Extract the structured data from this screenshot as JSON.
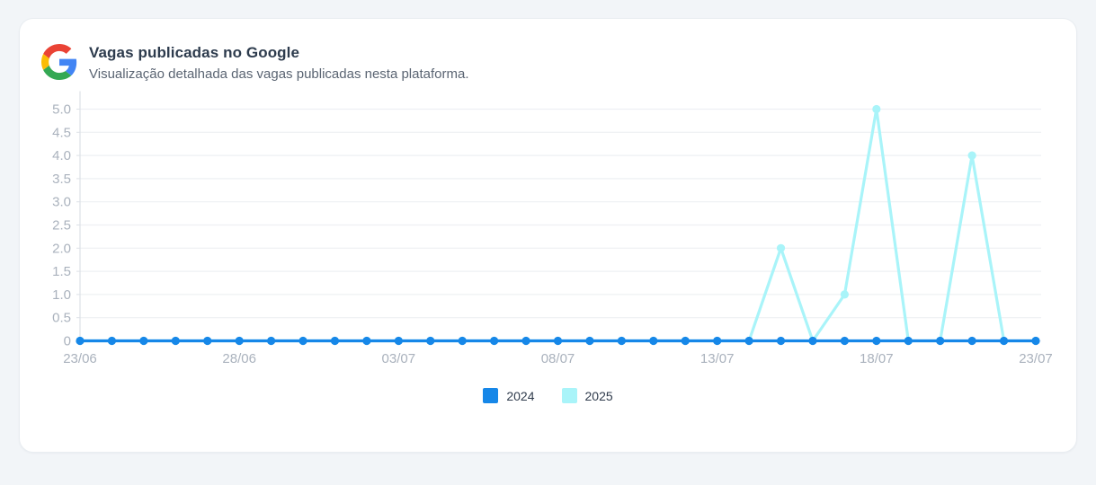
{
  "header": {
    "title": "Vagas publicadas no Google",
    "subtitle": "Visualização detalhada das vagas publicadas nesta plataforma.",
    "logo_icon": "google-g-logo"
  },
  "chart_data": {
    "type": "line",
    "title": "Vagas publicadas no Google",
    "x": [
      "23/06",
      "24/06",
      "25/06",
      "26/06",
      "27/06",
      "28/06",
      "29/06",
      "30/06",
      "01/07",
      "02/07",
      "03/07",
      "04/07",
      "05/07",
      "06/07",
      "07/07",
      "08/07",
      "09/07",
      "10/07",
      "11/07",
      "12/07",
      "13/07",
      "14/07",
      "15/07",
      "16/07",
      "17/07",
      "18/07",
      "19/07",
      "20/07",
      "21/07",
      "22/07",
      "23/07"
    ],
    "x_tick_labels": [
      "23/06",
      "28/06",
      "03/07",
      "08/07",
      "13/07",
      "18/07",
      "23/07"
    ],
    "x_tick_indices": [
      0,
      5,
      10,
      15,
      20,
      25,
      30
    ],
    "y_tick_labels": [
      "0",
      "0.5",
      "1.0",
      "1.5",
      "2.0",
      "2.5",
      "3.0",
      "3.5",
      "4.0",
      "4.5",
      "5.0"
    ],
    "y_tick_values": [
      0,
      0.5,
      1,
      1.5,
      2,
      2.5,
      3,
      3.5,
      4,
      4.5,
      5
    ],
    "ylim": [
      0,
      5
    ],
    "grid": true,
    "legend_position": "bottom-center",
    "series": [
      {
        "name": "2024",
        "color": "#1687e8",
        "values": [
          0,
          0,
          0,
          0,
          0,
          0,
          0,
          0,
          0,
          0,
          0,
          0,
          0,
          0,
          0,
          0,
          0,
          0,
          0,
          0,
          0,
          0,
          0,
          0,
          0,
          0,
          0,
          0,
          0,
          0,
          0
        ]
      },
      {
        "name": "2025",
        "color": "#a9f4f9",
        "values": [
          0,
          0,
          0,
          0,
          0,
          0,
          0,
          0,
          0,
          0,
          0,
          0,
          0,
          0,
          0,
          0,
          0,
          0,
          0,
          0,
          0,
          0,
          2,
          0,
          1,
          5,
          0,
          0,
          4,
          0,
          0
        ]
      }
    ]
  },
  "theme": {
    "page_bg": "#f2f5f8",
    "card_bg": "#ffffff",
    "card_border": "#e9edf1",
    "axis_text": "#aab2bd",
    "grid_color": "#eef0f3",
    "axis_line": "#dde1e7",
    "title_color": "#2d3b4d",
    "subtitle_color": "#5a6472"
  }
}
